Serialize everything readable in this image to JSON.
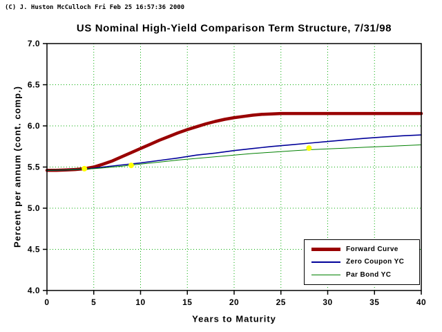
{
  "page": {
    "copyright": "(C) J. Huston McCulloch Fri Feb 25 16:57:36 2000"
  },
  "chart_data": {
    "type": "line",
    "title": "US Nominal High-Yield Comparison Term Structure, 7/31/98",
    "xlabel": "Years to Maturity",
    "ylabel": "Percent per annum (cont. comp.)",
    "xlim": [
      0,
      40
    ],
    "ylim": [
      4.0,
      7.0
    ],
    "x_ticks": [
      0,
      5,
      10,
      15,
      20,
      25,
      30,
      35,
      40
    ],
    "x_tick_labels": [
      "0",
      "5",
      "10",
      "15",
      "20",
      "25",
      "30",
      "35",
      "40"
    ],
    "y_ticks": [
      4.0,
      4.5,
      5.0,
      5.5,
      6.0,
      6.5,
      7.0
    ],
    "y_tick_labels": [
      "4.0",
      "4.5",
      "5.0",
      "5.5",
      "6.0",
      "6.5",
      "7.0"
    ],
    "grid": "dotted",
    "grid_color": "#00aa00",
    "axis_color": "#000000",
    "legend_position": "lower right",
    "series": [
      {
        "name": "Forward Curve",
        "color": "#990000",
        "width": 4.5,
        "points": [
          [
            0,
            5.46
          ],
          [
            1,
            5.46
          ],
          [
            2,
            5.465
          ],
          [
            3,
            5.47
          ],
          [
            4,
            5.48
          ],
          [
            5,
            5.5
          ],
          [
            6,
            5.535
          ],
          [
            7,
            5.575
          ],
          [
            8,
            5.625
          ],
          [
            9,
            5.675
          ],
          [
            10,
            5.725
          ],
          [
            11,
            5.775
          ],
          [
            12,
            5.825
          ],
          [
            13,
            5.87
          ],
          [
            14,
            5.915
          ],
          [
            15,
            5.955
          ],
          [
            16,
            5.99
          ],
          [
            17,
            6.025
          ],
          [
            18,
            6.055
          ],
          [
            19,
            6.08
          ],
          [
            20,
            6.1
          ],
          [
            21,
            6.115
          ],
          [
            22,
            6.13
          ],
          [
            23,
            6.14
          ],
          [
            24,
            6.145
          ],
          [
            25,
            6.15
          ],
          [
            26,
            6.15
          ],
          [
            28,
            6.15
          ],
          [
            30,
            6.15
          ],
          [
            32,
            6.15
          ],
          [
            34,
            6.15
          ],
          [
            36,
            6.15
          ],
          [
            38,
            6.15
          ],
          [
            40,
            6.15
          ]
        ]
      },
      {
        "name": "Zero Coupon YC",
        "color": "#000099",
        "width": 1.6,
        "points": [
          [
            0,
            5.46
          ],
          [
            2,
            5.465
          ],
          [
            4,
            5.475
          ],
          [
            5,
            5.485
          ],
          [
            6,
            5.5
          ],
          [
            8,
            5.525
          ],
          [
            10,
            5.55
          ],
          [
            12,
            5.58
          ],
          [
            14,
            5.61
          ],
          [
            16,
            5.645
          ],
          [
            18,
            5.67
          ],
          [
            20,
            5.7
          ],
          [
            22,
            5.725
          ],
          [
            24,
            5.75
          ],
          [
            26,
            5.77
          ],
          [
            28,
            5.79
          ],
          [
            30,
            5.81
          ],
          [
            32,
            5.83
          ],
          [
            34,
            5.85
          ],
          [
            36,
            5.865
          ],
          [
            38,
            5.88
          ],
          [
            40,
            5.89
          ]
        ]
      },
      {
        "name": "Par Bond YC",
        "color": "#008000",
        "width": 1,
        "points": [
          [
            0,
            5.46
          ],
          [
            2,
            5.465
          ],
          [
            4,
            5.475
          ],
          [
            5,
            5.48
          ],
          [
            6,
            5.49
          ],
          [
            8,
            5.51
          ],
          [
            10,
            5.535
          ],
          [
            12,
            5.56
          ],
          [
            14,
            5.585
          ],
          [
            16,
            5.605
          ],
          [
            18,
            5.625
          ],
          [
            20,
            5.645
          ],
          [
            22,
            5.665
          ],
          [
            24,
            5.68
          ],
          [
            26,
            5.695
          ],
          [
            28,
            5.71
          ],
          [
            30,
            5.72
          ],
          [
            32,
            5.73
          ],
          [
            34,
            5.74
          ],
          [
            36,
            5.75
          ],
          [
            38,
            5.76
          ],
          [
            40,
            5.77
          ]
        ]
      }
    ],
    "markers": {
      "name": "knot-points",
      "color": "#ffff00",
      "radius": 4,
      "points": [
        [
          4,
          5.48
        ],
        [
          9,
          5.52
        ],
        [
          28,
          5.73
        ]
      ]
    }
  }
}
